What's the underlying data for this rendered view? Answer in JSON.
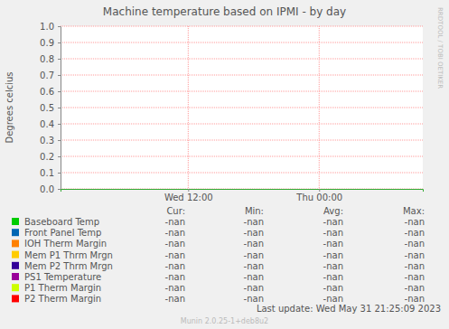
{
  "chart_data": {
    "type": "line",
    "title": "Machine temperature based on IPMI - by day",
    "y_label": "Degrees celcius",
    "x": [],
    "xlim": [
      0.3,
      33.5
    ],
    "xticks": [
      {
        "value": 12,
        "label": "Wed 12:00"
      },
      {
        "value": 24,
        "label": "Thu 00:00"
      }
    ],
    "ylim": [
      0,
      1
    ],
    "yticks": [
      {
        "value": 0,
        "label": "0.0"
      },
      0.1,
      0.2,
      0.3,
      0.4,
      0.5,
      0.6,
      0.7,
      0.8,
      0.9,
      {
        "value": 1,
        "label": "1.0"
      }
    ],
    "grid": true,
    "legend_columns": [
      "Cur:",
      "Min:",
      "Avg:",
      "Max:"
    ],
    "series": [
      {
        "name": "Baseboard Temp",
        "color": "#00cc00",
        "values": [],
        "stats": [
          "-nan",
          "-nan",
          "-nan",
          "-nan"
        ]
      },
      {
        "name": "Front Panel Temp",
        "color": "#0066b3",
        "values": [],
        "stats": [
          "-nan",
          "-nan",
          "-nan",
          "-nan"
        ]
      },
      {
        "name": "IOH Therm Margin",
        "color": "#ff8000",
        "values": [],
        "stats": [
          "-nan",
          "-nan",
          "-nan",
          "-nan"
        ]
      },
      {
        "name": "Mem P1 Thrm Mrgn",
        "color": "#ffcc00",
        "values": [],
        "stats": [
          "-nan",
          "-nan",
          "-nan",
          "-nan"
        ]
      },
      {
        "name": "Mem P2 Thrm Mrgn",
        "color": "#330099",
        "values": [],
        "stats": [
          "-nan",
          "-nan",
          "-nan",
          "-nan"
        ]
      },
      {
        "name": "PS1 Temperature",
        "color": "#990099",
        "values": [],
        "stats": [
          "-nan",
          "-nan",
          "-nan",
          "-nan"
        ]
      },
      {
        "name": "P1 Therm Margin",
        "color": "#ccff00",
        "values": [],
        "stats": [
          "-nan",
          "-nan",
          "-nan",
          "-nan"
        ]
      },
      {
        "name": "P2 Therm Margin",
        "color": "#ff0000",
        "values": [],
        "stats": [
          "-nan",
          "-nan",
          "-nan",
          "-nan"
        ]
      }
    ],
    "footer": "Last update:  Wed May 31 21:25:09 2023",
    "credit": "Munin 2.0.25-1+deb8u2",
    "watermark": "RRDTOOL / TOBI OETIKER"
  }
}
